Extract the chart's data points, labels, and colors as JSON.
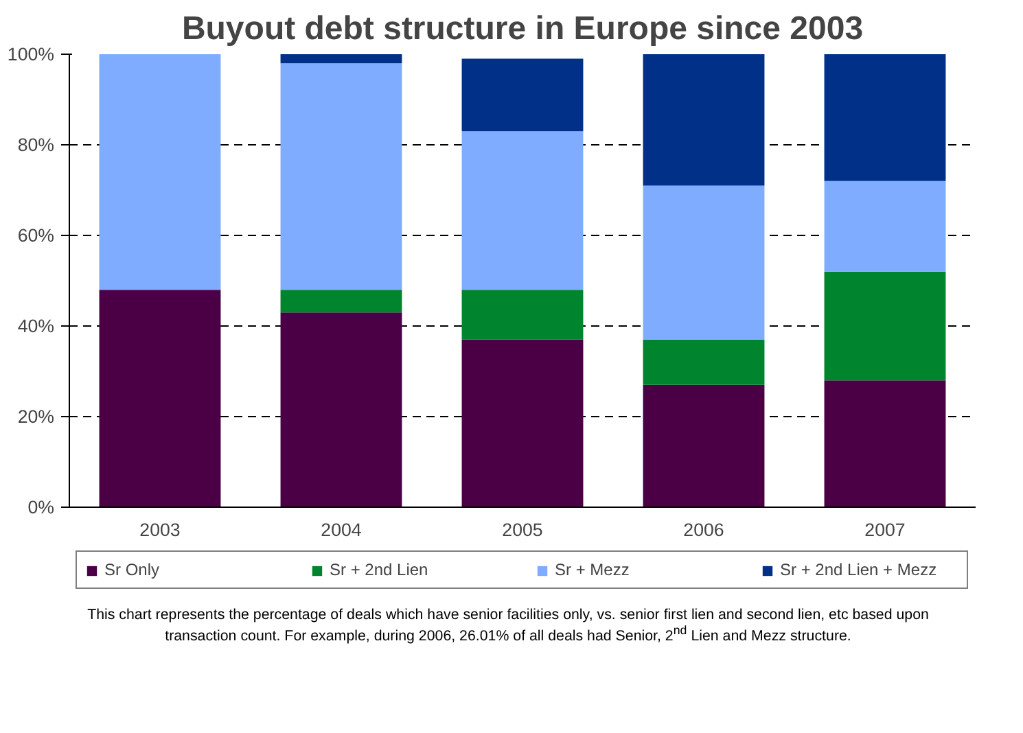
{
  "chart_data": {
    "type": "bar",
    "stacked": true,
    "title": "Buyout debt structure in Europe since 2003",
    "categories": [
      "2003",
      "2004",
      "2005",
      "2006",
      "2007"
    ],
    "series": [
      {
        "name": "Sr Only",
        "color": "#4b0046",
        "values": [
          48,
          43,
          37,
          27,
          28
        ]
      },
      {
        "name": "Sr + 2nd Lien",
        "color": "#00842e",
        "values": [
          0,
          5,
          11,
          10,
          24
        ]
      },
      {
        "name": "Sr + Mezz",
        "color": "#80acff",
        "values": [
          52,
          50,
          35,
          34,
          20
        ]
      },
      {
        "name": "Sr + 2nd Lien + Mezz",
        "color": "#003087",
        "values": [
          0,
          2,
          16,
          29,
          28
        ]
      }
    ],
    "ylim": [
      0,
      100
    ],
    "yticks": [
      {
        "value": 0,
        "label": "0%"
      },
      {
        "value": 20,
        "label": "20%"
      },
      {
        "value": 40,
        "label": "40%"
      },
      {
        "value": 60,
        "label": "60%"
      },
      {
        "value": 80,
        "label": "80%"
      },
      {
        "value": 100,
        "label": "100%"
      }
    ],
    "grid": "y",
    "legend": "bottom",
    "annotations": [
      "This chart represents the percentage of deals which have senior facilities only, vs. senior first lien and second lien, etc based upon transaction count.  For example, during 2006, 26.01% of all deals had Senior, 2$^{nd}$ Lien and Mezz structure."
    ]
  }
}
